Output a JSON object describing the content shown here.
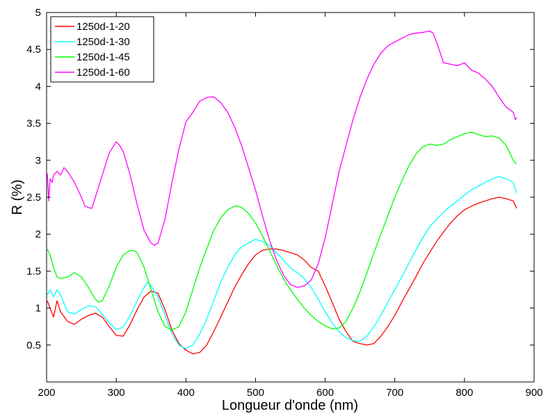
{
  "chart_data": {
    "type": "line",
    "title": "",
    "xlabel": "Longueur d'onde (nm)",
    "ylabel": "R (%)",
    "xlim": [
      200,
      900
    ],
    "ylim": [
      0,
      5
    ],
    "xticks": [
      200,
      300,
      400,
      500,
      600,
      700,
      800,
      900
    ],
    "yticks": [
      0.5,
      1,
      1.5,
      2,
      2.5,
      3,
      3.5,
      4,
      4.5,
      5
    ],
    "grid": false,
    "legend_position": "top-left",
    "series": [
      {
        "name": "1250d-1-20",
        "color": "#ff0000",
        "x": [
          201,
          205,
          210,
          215,
          220,
          230,
          240,
          250,
          260,
          270,
          280,
          290,
          300,
          310,
          320,
          330,
          340,
          350,
          360,
          370,
          380,
          390,
          400,
          410,
          420,
          430,
          440,
          450,
          460,
          470,
          480,
          490,
          500,
          510,
          520,
          530,
          540,
          550,
          560,
          570,
          580,
          590,
          600,
          610,
          620,
          630,
          640,
          650,
          660,
          670,
          680,
          690,
          700,
          710,
          720,
          730,
          740,
          750,
          760,
          770,
          780,
          790,
          800,
          810,
          820,
          830,
          840,
          850,
          860,
          870,
          875
        ],
        "y": [
          1.1,
          1.0,
          0.88,
          1.1,
          0.95,
          0.82,
          0.78,
          0.85,
          0.9,
          0.93,
          0.88,
          0.75,
          0.63,
          0.62,
          0.78,
          0.98,
          1.15,
          1.23,
          1.2,
          0.98,
          0.7,
          0.52,
          0.43,
          0.38,
          0.4,
          0.5,
          0.68,
          0.88,
          1.08,
          1.28,
          1.45,
          1.6,
          1.72,
          1.78,
          1.8,
          1.8,
          1.78,
          1.75,
          1.72,
          1.65,
          1.55,
          1.5,
          1.3,
          1.08,
          0.85,
          0.68,
          0.55,
          0.52,
          0.5,
          0.52,
          0.62,
          0.75,
          0.9,
          1.08,
          1.25,
          1.42,
          1.6,
          1.75,
          1.9,
          2.03,
          2.15,
          2.25,
          2.33,
          2.38,
          2.42,
          2.45,
          2.48,
          2.5,
          2.48,
          2.45,
          2.35
        ]
      },
      {
        "name": "1250d-1-30",
        "color": "#00ffff",
        "x": [
          201,
          205,
          210,
          215,
          220,
          230,
          240,
          250,
          260,
          270,
          280,
          290,
          300,
          310,
          320,
          330,
          340,
          345,
          350,
          360,
          370,
          380,
          390,
          400,
          410,
          420,
          430,
          440,
          450,
          460,
          470,
          480,
          490,
          500,
          510,
          520,
          530,
          540,
          550,
          560,
          570,
          580,
          590,
          600,
          610,
          620,
          630,
          640,
          650,
          660,
          670,
          680,
          690,
          700,
          710,
          720,
          730,
          740,
          750,
          760,
          770,
          780,
          790,
          800,
          810,
          820,
          830,
          840,
          850,
          860,
          870,
          875
        ],
        "y": [
          1.18,
          1.25,
          1.15,
          1.25,
          1.18,
          0.95,
          0.92,
          0.98,
          1.03,
          1.02,
          0.92,
          0.8,
          0.71,
          0.74,
          0.9,
          1.1,
          1.28,
          1.35,
          1.3,
          1.15,
          0.9,
          0.65,
          0.5,
          0.45,
          0.5,
          0.65,
          0.85,
          1.1,
          1.35,
          1.55,
          1.72,
          1.83,
          1.88,
          1.93,
          1.9,
          1.85,
          1.75,
          1.65,
          1.55,
          1.48,
          1.4,
          1.28,
          1.12,
          0.95,
          0.8,
          0.68,
          0.6,
          0.56,
          0.55,
          0.62,
          0.75,
          0.9,
          1.08,
          1.25,
          1.42,
          1.6,
          1.78,
          1.95,
          2.1,
          2.2,
          2.3,
          2.38,
          2.45,
          2.53,
          2.6,
          2.65,
          2.7,
          2.75,
          2.78,
          2.75,
          2.7,
          2.55
        ]
      },
      {
        "name": "1250d-1-45",
        "color": "#00ff00",
        "x": [
          201,
          205,
          210,
          215,
          220,
          230,
          240,
          250,
          260,
          270,
          275,
          280,
          290,
          300,
          310,
          320,
          325,
          330,
          340,
          350,
          360,
          370,
          380,
          390,
          400,
          410,
          420,
          430,
          440,
          450,
          460,
          470,
          475,
          480,
          490,
          500,
          510,
          520,
          530,
          540,
          550,
          560,
          570,
          580,
          590,
          600,
          610,
          620,
          630,
          640,
          650,
          660,
          670,
          680,
          690,
          700,
          710,
          720,
          730,
          740,
          750,
          760,
          770,
          780,
          790,
          800,
          810,
          820,
          830,
          840,
          850,
          860,
          870,
          875
        ],
        "y": [
          1.8,
          1.72,
          1.55,
          1.42,
          1.4,
          1.42,
          1.48,
          1.42,
          1.28,
          1.12,
          1.08,
          1.1,
          1.3,
          1.55,
          1.72,
          1.78,
          1.78,
          1.75,
          1.55,
          1.25,
          0.95,
          0.75,
          0.7,
          0.75,
          0.95,
          1.25,
          1.55,
          1.8,
          2.05,
          2.22,
          2.33,
          2.38,
          2.38,
          2.36,
          2.28,
          2.15,
          1.98,
          1.78,
          1.58,
          1.4,
          1.25,
          1.12,
          1.0,
          0.9,
          0.82,
          0.76,
          0.72,
          0.73,
          0.82,
          1.0,
          1.22,
          1.48,
          1.75,
          2.0,
          2.25,
          2.5,
          2.72,
          2.92,
          3.08,
          3.18,
          3.22,
          3.2,
          3.22,
          3.28,
          3.32,
          3.36,
          3.38,
          3.35,
          3.32,
          3.33,
          3.3,
          3.2,
          3.0,
          2.95
        ]
      },
      {
        "name": "1250d-1-60",
        "color": "#ff00ff",
        "x": [
          201,
          203,
          205,
          208,
          210,
          212,
          215,
          220,
          225,
          230,
          240,
          250,
          255,
          260,
          265,
          270,
          280,
          290,
          300,
          305,
          310,
          320,
          330,
          340,
          350,
          355,
          360,
          370,
          380,
          390,
          400,
          410,
          420,
          430,
          440,
          450,
          460,
          470,
          480,
          490,
          500,
          510,
          520,
          530,
          540,
          550,
          560,
          570,
          580,
          590,
          600,
          610,
          620,
          630,
          640,
          650,
          660,
          670,
          680,
          690,
          700,
          710,
          720,
          730,
          740,
          750,
          755,
          760,
          770,
          780,
          790,
          800,
          810,
          820,
          830,
          840,
          850,
          860,
          870,
          873,
          875
        ],
        "y": [
          2.82,
          2.45,
          2.75,
          2.7,
          2.8,
          2.82,
          2.85,
          2.8,
          2.9,
          2.85,
          2.7,
          2.5,
          2.38,
          2.36,
          2.35,
          2.5,
          2.8,
          3.1,
          3.25,
          3.2,
          3.12,
          2.8,
          2.4,
          2.05,
          1.88,
          1.85,
          1.88,
          2.2,
          2.7,
          3.15,
          3.52,
          3.65,
          3.8,
          3.85,
          3.86,
          3.78,
          3.65,
          3.45,
          3.2,
          2.9,
          2.6,
          2.25,
          1.92,
          1.65,
          1.45,
          1.32,
          1.28,
          1.3,
          1.38,
          1.6,
          1.95,
          2.4,
          2.85,
          3.2,
          3.55,
          3.85,
          4.1,
          4.3,
          4.45,
          4.55,
          4.6,
          4.65,
          4.7,
          4.72,
          4.73,
          4.75,
          4.72,
          4.6,
          4.32,
          4.3,
          4.28,
          4.32,
          4.22,
          4.18,
          4.1,
          4.0,
          3.85,
          3.72,
          3.65,
          3.55,
          3.58
        ]
      }
    ]
  }
}
